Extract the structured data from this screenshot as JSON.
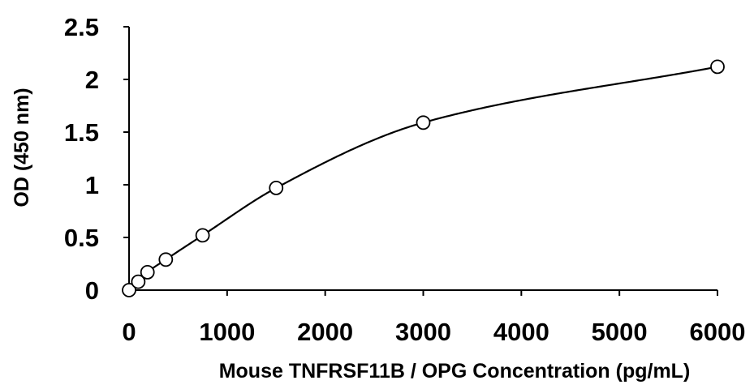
{
  "chart_data": {
    "type": "scatter",
    "title": "",
    "xlabel": "Mouse TNFRSF11B / OPG Concentration (pg/mL)",
    "ylabel": "OD (450 nm)",
    "xlim": [
      0,
      6000
    ],
    "ylim": [
      0,
      2.5
    ],
    "xticks": [
      0,
      1000,
      2000,
      3000,
      4000,
      5000,
      6000
    ],
    "yticks": [
      0,
      0.5,
      1,
      1.5,
      2,
      2.5
    ],
    "ytick_labels": [
      "0",
      "0.5",
      "1",
      "1.5",
      "2",
      "2.5"
    ],
    "grid": false,
    "legend": "none",
    "marker": "open-circle",
    "trendline": "smooth fitted curve",
    "series": [
      {
        "x": [
          0,
          94,
          188,
          375,
          750,
          1500,
          3000,
          6000
        ],
        "y": [
          0.0,
          0.08,
          0.17,
          0.29,
          0.52,
          0.97,
          1.59,
          2.12
        ]
      }
    ]
  }
}
